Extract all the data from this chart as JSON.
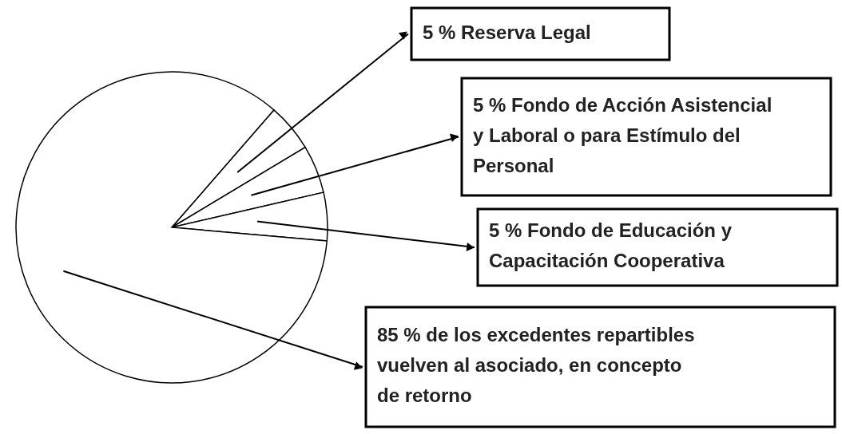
{
  "chart_data": {
    "type": "pie",
    "categories": [
      "Reserva Legal",
      "Fondo de Acción Asistencial y Laboral o para Estímulo del Personal",
      "Fondo de Educación y Capacitación Cooperativa",
      "de los excedentes repartibles vuelven al asociado, en concepto de retorno"
    ],
    "values": [
      5,
      5,
      5,
      85
    ],
    "value_labels": [
      "5 %",
      "5 %",
      "5 %",
      "85 %"
    ],
    "colors": [
      "#ffffff",
      "#ffffff",
      "#ffffff",
      "#ffffff"
    ],
    "legend": "right"
  }
}
